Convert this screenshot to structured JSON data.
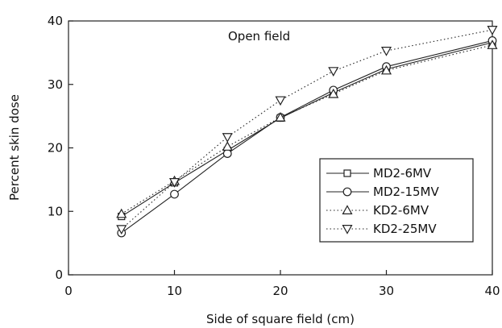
{
  "chart_data": {
    "type": "line",
    "annotation": "Open field",
    "xlabel": "Side of square field (cm)",
    "ylabel": "Percent skin dose",
    "xlim": [
      0,
      40
    ],
    "ylim": [
      0,
      40
    ],
    "x_ticks": [
      0,
      10,
      20,
      30,
      40
    ],
    "y_ticks": [
      0,
      10,
      20,
      30,
      40
    ],
    "grid": false,
    "legend_position": "bottom-right",
    "series": [
      {
        "name": "MD2-6MV",
        "marker": "square",
        "line": "solid",
        "x": [
          5,
          10,
          15,
          20,
          25,
          30,
          40
        ],
        "y": [
          9.2,
          14.5,
          19.6,
          24.7,
          28.7,
          32.4,
          36.6
        ]
      },
      {
        "name": "MD2-15MV",
        "marker": "circle",
        "line": "solid",
        "x": [
          5,
          10,
          15,
          20,
          25,
          30,
          40
        ],
        "y": [
          6.6,
          12.7,
          19.1,
          24.8,
          29.1,
          32.8,
          36.9
        ]
      },
      {
        "name": "KD2-6MV",
        "marker": "triangle-up",
        "line": "dotted",
        "x": [
          5,
          10,
          15,
          20,
          25,
          30,
          40
        ],
        "y": [
          9.6,
          14.8,
          20.2,
          24.8,
          28.5,
          32.2,
          36.2
        ]
      },
      {
        "name": "KD2-25MV",
        "marker": "triangle-down",
        "line": "dotted",
        "x": [
          5,
          10,
          15,
          20,
          25,
          30,
          40
        ],
        "y": [
          7.2,
          14.6,
          21.7,
          27.5,
          32.1,
          35.3,
          38.6
        ]
      }
    ]
  }
}
